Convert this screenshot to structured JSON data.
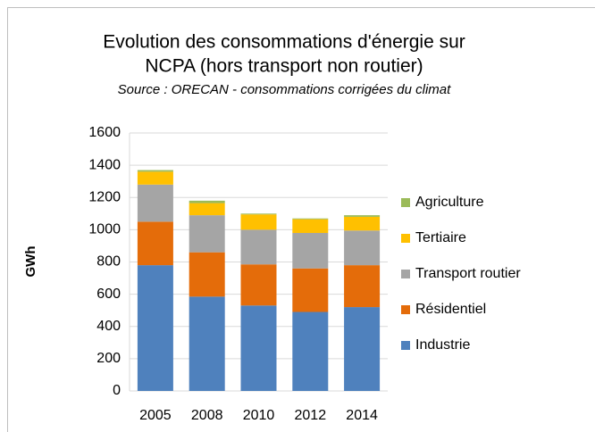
{
  "chart_data": {
    "type": "stacked_bar",
    "title": "Evolution des consommations d'énergie sur NCPA (hors transport non routier)",
    "subtitle": "Source : ORECAN - consommations corrigées du climat",
    "y_label": "GWh",
    "categories": [
      "2005",
      "2008",
      "2010",
      "2012",
      "2014"
    ],
    "series": [
      {
        "name": "Industrie",
        "color": "#4f81bd",
        "values": [
          780,
          585,
          530,
          490,
          520
        ]
      },
      {
        "name": "Résidentiel",
        "color": "#e46c0a",
        "values": [
          270,
          275,
          255,
          270,
          260
        ]
      },
      {
        "name": "Transport routier",
        "color": "#a5a5a5",
        "values": [
          230,
          230,
          215,
          220,
          215
        ]
      },
      {
        "name": "Tertiaire",
        "color": "#ffc000",
        "values": [
          80,
          75,
          95,
          85,
          85
        ]
      },
      {
        "name": "Agriculture",
        "color": "#9bbb59",
        "values": [
          10,
          15,
          5,
          5,
          10
        ]
      }
    ],
    "ylim": [
      0,
      1600
    ],
    "yticks": [
      0,
      200,
      400,
      600,
      800,
      1000,
      1200,
      1400,
      1600
    ],
    "grid": true,
    "legend": "right"
  }
}
